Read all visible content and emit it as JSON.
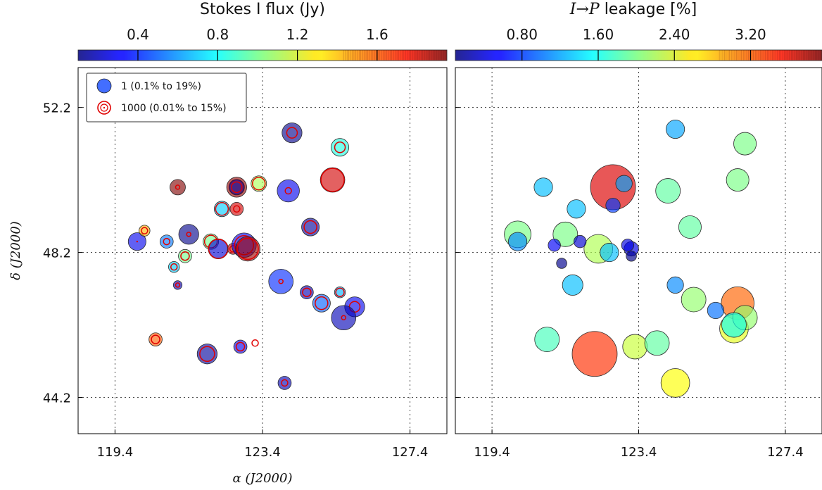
{
  "chart_data": [
    {
      "type": "scatter",
      "panel": "left",
      "xlabel": "α (J2000)",
      "ylabel": "δ (J2000)",
      "xlim": [
        118.4,
        128.4
      ],
      "ylim": [
        43.2,
        53.3
      ],
      "x_ticks": [
        "119.4",
        "123.4",
        "127.4"
      ],
      "y_ticks": [
        "44.2",
        "48.2",
        "52.2"
      ],
      "grid": true,
      "colorbar": {
        "label": "Stokes I flux (Jy)",
        "ticks": [
          "0.4",
          "0.8",
          "1.2",
          "1.6"
        ],
        "range": [
          0.1,
          1.95
        ],
        "colormap": "jet"
      },
      "legend": {
        "position": "top-left",
        "entries": [
          {
            "label": "1 (0.1% to 19%)",
            "marker": "filled-blue-circle"
          },
          {
            "label": "1000 (0.01% to 15%)",
            "marker": "red-ring"
          }
        ]
      },
      "points": [
        {
          "ra": 124.2,
          "dec": 51.5,
          "flux": 0.12,
          "lev1": 7,
          "lev2": 4
        },
        {
          "ra": 125.5,
          "dec": 51.1,
          "flux": 0.85,
          "lev1": 6,
          "lev2": 4
        },
        {
          "ra": 121.1,
          "dec": 50.0,
          "flux": 1.95,
          "lev1": 5,
          "lev2": 1
        },
        {
          "ra": 122.7,
          "dec": 50.0,
          "flux": 1.9,
          "lev1": 7,
          "lev2": 6
        },
        {
          "ra": 122.7,
          "dec": 50.0,
          "flux": 0.15,
          "lev1": 5,
          "lev2": 4
        },
        {
          "ra": 123.3,
          "dec": 50.1,
          "flux": 1.1,
          "lev1": 5,
          "lev2": 5
        },
        {
          "ra": 124.1,
          "dec": 49.9,
          "flux": 0.3,
          "lev1": 8,
          "lev2": 2
        },
        {
          "ra": 125.3,
          "dec": 50.2,
          "flux": 1.8,
          "lev1": 9,
          "lev2": 10
        },
        {
          "ra": 122.3,
          "dec": 49.4,
          "flux": 0.7,
          "lev1": 5,
          "lev2": 5
        },
        {
          "ra": 122.7,
          "dec": 49.4,
          "flux": 1.8,
          "lev1": 4,
          "lev2": 2
        },
        {
          "ra": 124.7,
          "dec": 48.9,
          "flux": 0.15,
          "lev1": 6,
          "lev2": 5
        },
        {
          "ra": 120.0,
          "dec": 48.5,
          "flux": 0.3,
          "lev1": 6,
          "lev2": 0
        },
        {
          "ra": 120.2,
          "dec": 48.8,
          "flux": 1.4,
          "lev1": 3,
          "lev2": 2
        },
        {
          "ra": 120.8,
          "dec": 48.5,
          "flux": 0.55,
          "lev1": 4,
          "lev2": 2
        },
        {
          "ra": 121.4,
          "dec": 48.7,
          "flux": 0.12,
          "lev1": 7,
          "lev2": 1
        },
        {
          "ra": 122.0,
          "dec": 48.5,
          "flux": 1.0,
          "lev1": 5,
          "lev2": 5
        },
        {
          "ra": 122.2,
          "dec": 48.3,
          "flux": 0.25,
          "lev1": 7,
          "lev2": 8
        },
        {
          "ra": 122.6,
          "dec": 48.3,
          "flux": 1.8,
          "lev1": 3,
          "lev2": 2
        },
        {
          "ra": 122.9,
          "dec": 48.4,
          "flux": 0.3,
          "lev1": 9,
          "lev2": 8
        },
        {
          "ra": 123.0,
          "dec": 48.3,
          "flux": 1.9,
          "lev1": 9,
          "lev2": 9
        },
        {
          "ra": 121.3,
          "dec": 48.1,
          "flux": 1.0,
          "lev1": 4,
          "lev2": 3
        },
        {
          "ra": 121.0,
          "dec": 47.8,
          "flux": 0.7,
          "lev1": 3,
          "lev2": 2
        },
        {
          "ra": 121.1,
          "dec": 47.3,
          "flux": 0.2,
          "lev1": 2,
          "lev2": 1
        },
        {
          "ra": 123.9,
          "dec": 47.4,
          "flux": 0.4,
          "lev1": 9,
          "lev2": 1
        },
        {
          "ra": 124.6,
          "dec": 47.1,
          "flux": 0.2,
          "lev1": 4,
          "lev2": 3
        },
        {
          "ra": 125.5,
          "dec": 47.1,
          "flux": 0.65,
          "lev1": 3,
          "lev2": 3
        },
        {
          "ra": 125.0,
          "dec": 46.8,
          "flux": 0.5,
          "lev1": 6,
          "lev2": 5
        },
        {
          "ra": 125.9,
          "dec": 46.7,
          "flux": 0.3,
          "lev1": 7,
          "lev2": 4
        },
        {
          "ra": 125.6,
          "dec": 46.4,
          "flux": 0.2,
          "lev1": 9,
          "lev2": 1
        },
        {
          "ra": 120.5,
          "dec": 45.8,
          "flux": 1.55,
          "lev1": 4,
          "lev2": 3
        },
        {
          "ra": 122.8,
          "dec": 45.6,
          "flux": 0.3,
          "lev1": 4,
          "lev2": 3
        },
        {
          "ra": 123.2,
          "dec": 45.7,
          "flux": 1.7,
          "lev1": 0,
          "lev2": 2
        },
        {
          "ra": 121.9,
          "dec": 45.4,
          "flux": 0.15,
          "lev1": 7,
          "lev2": 6
        },
        {
          "ra": 124.0,
          "dec": 44.6,
          "flux": 0.2,
          "lev1": 4,
          "lev2": 2
        }
      ]
    },
    {
      "type": "scatter",
      "panel": "right",
      "xlim": [
        118.4,
        128.4
      ],
      "ylim": [
        43.2,
        53.3
      ],
      "x_ticks": [
        "119.4",
        "123.4",
        "127.4"
      ],
      "grid": true,
      "colorbar": {
        "label_math": "I→P",
        "label_text": " leakage [%]",
        "ticks": [
          "0.80",
          "1.60",
          "2.40",
          "3.20"
        ],
        "range": [
          0.1,
          3.95
        ],
        "colormap": "jet"
      },
      "points": [
        {
          "ra": 124.4,
          "dec": 51.6,
          "leak": 1.2,
          "size": 7
        },
        {
          "ra": 126.3,
          "dec": 51.2,
          "leak": 2.0,
          "size": 9
        },
        {
          "ra": 120.8,
          "dec": 50.0,
          "leak": 1.3,
          "size": 7
        },
        {
          "ra": 123.0,
          "dec": 50.1,
          "leak": 1.2,
          "size": 6
        },
        {
          "ra": 122.7,
          "dec": 50.0,
          "leak": 3.6,
          "size": 20
        },
        {
          "ra": 124.2,
          "dec": 49.9,
          "leak": 1.9,
          "size": 10
        },
        {
          "ra": 126.1,
          "dec": 50.2,
          "leak": 2.0,
          "size": 9
        },
        {
          "ra": 121.7,
          "dec": 49.4,
          "leak": 1.3,
          "size": 7
        },
        {
          "ra": 122.7,
          "dec": 49.5,
          "leak": 0.8,
          "size": 5
        },
        {
          "ra": 124.8,
          "dec": 48.9,
          "leak": 1.9,
          "size": 9
        },
        {
          "ra": 120.1,
          "dec": 48.7,
          "leak": 2.0,
          "size": 11
        },
        {
          "ra": 120.1,
          "dec": 48.5,
          "leak": 1.1,
          "size": 7
        },
        {
          "ra": 121.4,
          "dec": 48.7,
          "leak": 2.0,
          "size": 10
        },
        {
          "ra": 121.1,
          "dec": 48.4,
          "leak": 0.55,
          "size": 4
        },
        {
          "ra": 121.8,
          "dec": 48.5,
          "leak": 0.4,
          "size": 4
        },
        {
          "ra": 122.3,
          "dec": 48.3,
          "leak": 2.2,
          "size": 12
        },
        {
          "ra": 122.6,
          "dec": 48.2,
          "leak": 1.3,
          "size": 7
        },
        {
          "ra": 123.1,
          "dec": 48.4,
          "leak": 0.45,
          "size": 4
        },
        {
          "ra": 123.2,
          "dec": 48.3,
          "leak": 0.5,
          "size": 5
        },
        {
          "ra": 123.2,
          "dec": 48.1,
          "leak": 0.15,
          "size": 3
        },
        {
          "ra": 121.3,
          "dec": 47.9,
          "leak": 0.15,
          "size": 3
        },
        {
          "ra": 121.6,
          "dec": 47.3,
          "leak": 1.3,
          "size": 8
        },
        {
          "ra": 124.4,
          "dec": 47.3,
          "leak": 1.1,
          "size": 6
        },
        {
          "ra": 124.9,
          "dec": 46.9,
          "leak": 2.1,
          "size": 10
        },
        {
          "ra": 125.5,
          "dec": 46.6,
          "leak": 1.0,
          "size": 6
        },
        {
          "ra": 126.1,
          "dec": 46.8,
          "leak": 3.1,
          "size": 14
        },
        {
          "ra": 126.3,
          "dec": 46.4,
          "leak": 2.1,
          "size": 10
        },
        {
          "ra": 126.0,
          "dec": 46.2,
          "leak": 1.6,
          "size": 10
        },
        {
          "ra": 126.0,
          "dec": 46.1,
          "leak": 2.4,
          "size": 12
        },
        {
          "ra": 120.9,
          "dec": 45.8,
          "leak": 1.8,
          "size": 10
        },
        {
          "ra": 122.2,
          "dec": 45.4,
          "leak": 3.3,
          "size": 20
        },
        {
          "ra": 123.3,
          "dec": 45.6,
          "leak": 2.3,
          "size": 10
        },
        {
          "ra": 123.9,
          "dec": 45.7,
          "leak": 1.9,
          "size": 10
        },
        {
          "ra": 124.4,
          "dec": 44.6,
          "leak": 2.5,
          "size": 12
        }
      ]
    }
  ]
}
